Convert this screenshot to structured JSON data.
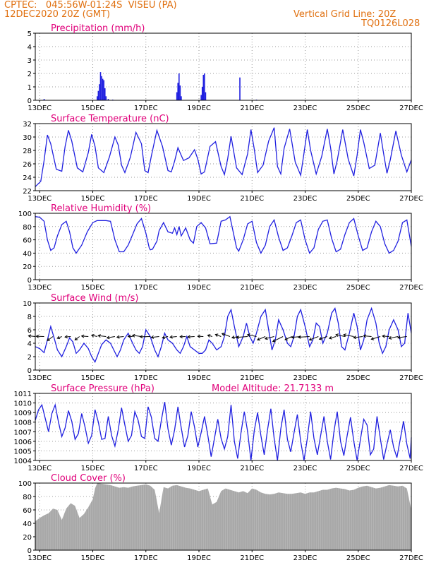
{
  "header": {
    "line1": "CPTEC:   045:56W-01:24S  VISEU (PA)",
    "line2": "12DEC2020 20Z (GMT)",
    "grid_note": "Vertical Grid Line: 20Z",
    "code": "TQ0126L028"
  },
  "colors": {
    "frame": "#000000",
    "grid": "#999999",
    "series": "#2020e0",
    "title": "#e0007a",
    "header": "#e07010",
    "cloud": "#a8a8a8"
  },
  "time_axis": {
    "tick_labels": [
      "13DEC",
      "15DEC",
      "17DEC",
      "19DEC",
      "21DEC",
      "23DEC",
      "25DEC",
      "27DEC"
    ],
    "tick_hours": [
      4,
      52,
      100,
      148,
      196,
      244,
      292,
      340
    ],
    "range_hours": [
      0,
      340
    ]
  },
  "chart_data": [
    {
      "id": "precip",
      "type": "bar",
      "title": "Precipitation (mm/h)",
      "ylim": [
        0,
        5
      ],
      "yticks": [
        0,
        1,
        2,
        3,
        4,
        5
      ],
      "events": [
        {
          "x": 8,
          "y": 0.1
        },
        {
          "x": 56,
          "y": 0.3
        },
        {
          "x": 57,
          "y": 0.7
        },
        {
          "x": 58,
          "y": 1.2
        },
        {
          "x": 59,
          "y": 2.1
        },
        {
          "x": 60,
          "y": 1.8
        },
        {
          "x": 61,
          "y": 1.6
        },
        {
          "x": 62,
          "y": 1.5
        },
        {
          "x": 63,
          "y": 0.9
        },
        {
          "x": 64,
          "y": 0.3
        },
        {
          "x": 66,
          "y": 0.1
        },
        {
          "x": 70,
          "y": 0.05
        },
        {
          "x": 128,
          "y": 0.6
        },
        {
          "x": 129,
          "y": 1.3
        },
        {
          "x": 130,
          "y": 2.0
        },
        {
          "x": 131,
          "y": 1.1
        },
        {
          "x": 132,
          "y": 0.3
        },
        {
          "x": 150,
          "y": 0.4
        },
        {
          "x": 151,
          "y": 1.0
        },
        {
          "x": 152,
          "y": 1.9
        },
        {
          "x": 153,
          "y": 2.0
        },
        {
          "x": 154,
          "y": 0.6
        },
        {
          "x": 185,
          "y": 1.7
        },
        {
          "x": 200,
          "y": 0.05
        }
      ]
    },
    {
      "id": "temp",
      "type": "line",
      "title": "Surface Temperature (nC)",
      "ylim": [
        22,
        32
      ],
      "yticks": [
        22,
        24,
        26,
        28,
        30,
        32
      ],
      "x": [
        0,
        5,
        8,
        11,
        14,
        19,
        24,
        27,
        30,
        33,
        38,
        43,
        48,
        51,
        54,
        57,
        62,
        67,
        72,
        75,
        78,
        81,
        86,
        91,
        96,
        99,
        102,
        105,
        110,
        115,
        120,
        123,
        126,
        129,
        134,
        139,
        144,
        147,
        150,
        153,
        158,
        163,
        168,
        171,
        174,
        177,
        182,
        187,
        192,
        195,
        198,
        201,
        206,
        211,
        216,
        219,
        222,
        225,
        230,
        235,
        240,
        243,
        246,
        249,
        254,
        259,
        264,
        267,
        270,
        273,
        278,
        283,
        288,
        291,
        294,
        297,
        302,
        307,
        312,
        315,
        318,
        321,
        326,
        331,
        336,
        340
      ],
      "values": [
        22.6,
        23.4,
        26.5,
        30.3,
        29.0,
        25.2,
        24.9,
        28.6,
        31.0,
        29.4,
        25.4,
        24.8,
        27.7,
        30.4,
        28.6,
        25.4,
        24.7,
        27.0,
        30.0,
        28.8,
        25.8,
        24.7,
        27.0,
        30.7,
        29.0,
        25.0,
        24.7,
        27.2,
        31.0,
        28.6,
        25.0,
        24.8,
        26.4,
        28.4,
        26.5,
        26.9,
        28.1,
        26.7,
        24.5,
        24.8,
        28.6,
        29.3,
        25.6,
        24.4,
        26.8,
        30.1,
        25.4,
        24.4,
        27.5,
        31.1,
        28.2,
        24.7,
        25.8,
        29.4,
        31.4,
        25.6,
        24.5,
        28.3,
        31.2,
        26.3,
        24.3,
        27.6,
        31.1,
        28.0,
        24.5,
        27.1,
        31.2,
        28.4,
        24.5,
        26.5,
        31.1,
        26.7,
        24.2,
        27.3,
        31.1,
        29.2,
        25.3,
        25.8,
        30.6,
        27.5,
        24.6,
        26.6,
        30.9,
        27.3,
        24.8,
        26.6
      ]
    },
    {
      "id": "rh",
      "type": "line",
      "title": "Relative Humidity (%)",
      "ylim": [
        0,
        100
      ],
      "yticks": [
        0,
        20,
        40,
        60,
        80,
        100
      ],
      "x": [
        0,
        4,
        8,
        11,
        14,
        17,
        20,
        24,
        28,
        31,
        34,
        37,
        42,
        47,
        52,
        56,
        60,
        64,
        68,
        72,
        76,
        80,
        84,
        88,
        92,
        96,
        100,
        103,
        104,
        106,
        110,
        112,
        116,
        120,
        124,
        126,
        128,
        130,
        132,
        134,
        136,
        140,
        143,
        146,
        150,
        154,
        158,
        164,
        168,
        172,
        176,
        182,
        184,
        188,
        192,
        196,
        200,
        204,
        208,
        212,
        216,
        220,
        224,
        228,
        232,
        236,
        240,
        244,
        248,
        252,
        256,
        260,
        264,
        268,
        272,
        276,
        280,
        284,
        288,
        292,
        296,
        300,
        304,
        308,
        312,
        316,
        320,
        324,
        328,
        332,
        336,
        340
      ],
      "values": [
        95,
        94,
        88,
        60,
        44,
        48,
        66,
        83,
        88,
        72,
        48,
        40,
        52,
        72,
        86,
        89,
        89,
        89,
        88,
        60,
        42,
        42,
        52,
        68,
        84,
        92,
        70,
        48,
        45,
        46,
        58,
        74,
        86,
        72,
        70,
        78,
        68,
        80,
        66,
        72,
        78,
        60,
        55,
        80,
        86,
        78,
        54,
        55,
        88,
        90,
        95,
        48,
        43,
        60,
        84,
        88,
        56,
        40,
        52,
        80,
        90,
        64,
        44,
        48,
        66,
        86,
        90,
        60,
        40,
        48,
        76,
        88,
        90,
        62,
        42,
        46,
        68,
        86,
        92,
        66,
        44,
        48,
        72,
        88,
        80,
        54,
        40,
        44,
        58,
        86,
        90,
        50
      ]
    },
    {
      "id": "wind",
      "type": "line",
      "title": "Surface Wind (m/s)",
      "ylim": [
        0,
        10
      ],
      "yticks": [
        0,
        2,
        4,
        6,
        8,
        10
      ],
      "x": [
        0,
        4,
        8,
        11,
        14,
        17,
        20,
        24,
        28,
        31,
        34,
        37,
        40,
        44,
        48,
        51,
        54,
        57,
        60,
        64,
        68,
        71,
        74,
        77,
        80,
        84,
        88,
        91,
        94,
        97,
        100,
        104,
        108,
        111,
        114,
        117,
        120,
        124,
        128,
        131,
        134,
        137,
        140,
        144,
        148,
        151,
        154,
        157,
        160,
        164,
        168,
        171,
        174,
        177,
        180,
        184,
        188,
        191,
        194,
        197,
        200,
        204,
        208,
        211,
        214,
        217,
        220,
        224,
        228,
        231,
        234,
        237,
        240,
        244,
        248,
        251,
        254,
        257,
        260,
        264,
        268,
        271,
        274,
        277,
        280,
        284,
        288,
        291,
        294,
        297,
        300,
        304,
        308,
        311,
        314,
        317,
        320,
        324,
        328,
        331,
        334,
        337,
        340
      ],
      "values": [
        3.5,
        3.2,
        2.6,
        4.5,
        6.5,
        4.8,
        3.0,
        2.0,
        3.5,
        4.8,
        4.2,
        2.5,
        3.0,
        4.0,
        3.2,
        2.0,
        1.2,
        2.5,
        3.8,
        4.5,
        4.0,
        3.0,
        2.0,
        3.0,
        4.5,
        5.5,
        4.0,
        3.0,
        2.5,
        3.5,
        6.0,
        5.0,
        3.0,
        2.0,
        3.5,
        5.5,
        4.5,
        4.0,
        3.0,
        2.5,
        3.5,
        5.0,
        3.5,
        3.0,
        2.5,
        2.5,
        3.0,
        4.5,
        4.0,
        3.0,
        3.5,
        5.0,
        8.0,
        9.0,
        6.5,
        3.5,
        5.0,
        7.0,
        5.0,
        4.0,
        5.5,
        8.0,
        9.0,
        6.0,
        3.0,
        4.5,
        7.5,
        6.0,
        4.0,
        3.5,
        5.0,
        8.0,
        9.0,
        6.5,
        3.5,
        4.5,
        7.0,
        6.5,
        4.0,
        5.5,
        8.5,
        9.2,
        7.0,
        3.5,
        3.0,
        5.5,
        8.5,
        6.5,
        3.0,
        4.5,
        7.5,
        9.2,
        7.0,
        4.0,
        2.5,
        3.5,
        6.0,
        7.5,
        6.0,
        3.5,
        4.0,
        8.5,
        5.5
      ]
    },
    {
      "id": "pressure",
      "type": "line",
      "title": "Surface Pressure (hPa)",
      "annotation": "Model Altitude: 21.7133 m",
      "ylim": [
        1004,
        1011
      ],
      "yticks": [
        1004,
        1005,
        1006,
        1007,
        1008,
        1009,
        1010,
        1011
      ],
      "x": [
        0,
        3,
        6,
        9,
        12,
        15,
        18,
        21,
        24,
        27,
        30,
        33,
        36,
        39,
        42,
        45,
        48,
        51,
        54,
        57,
        60,
        63,
        66,
        69,
        72,
        75,
        78,
        81,
        84,
        87,
        90,
        93,
        96,
        99,
        102,
        105,
        108,
        111,
        114,
        117,
        120,
        123,
        126,
        129,
        132,
        135,
        138,
        141,
        144,
        147,
        150,
        153,
        156,
        159,
        162,
        165,
        168,
        171,
        174,
        177,
        180,
        183,
        186,
        189,
        192,
        195,
        198,
        201,
        204,
        207,
        210,
        213,
        216,
        219,
        222,
        225,
        228,
        231,
        234,
        237,
        240,
        243,
        246,
        249,
        252,
        255,
        258,
        261,
        264,
        267,
        270,
        273,
        276,
        279,
        282,
        285,
        288,
        291,
        294,
        297,
        300,
        303,
        306,
        309,
        312,
        315,
        318,
        321,
        324,
        327,
        330,
        333,
        336,
        339,
        340
      ],
      "values": [
        1008.2,
        1009.3,
        1009.8,
        1008.4,
        1007.0,
        1008.9,
        1009.8,
        1008.0,
        1006.5,
        1007.4,
        1009.2,
        1008.1,
        1006.2,
        1006.8,
        1008.9,
        1007.5,
        1005.8,
        1006.6,
        1009.3,
        1008.0,
        1006.2,
        1006.3,
        1008.6,
        1006.6,
        1005.5,
        1007.2,
        1009.5,
        1007.7,
        1006.0,
        1006.6,
        1009.1,
        1008.2,
        1006.5,
        1006.3,
        1009.6,
        1008.5,
        1006.3,
        1006.0,
        1008.2,
        1010.1,
        1007.3,
        1005.6,
        1007.2,
        1009.6,
        1007.4,
        1005.4,
        1006.6,
        1009.1,
        1007.5,
        1005.4,
        1006.9,
        1008.6,
        1006.6,
        1004.4,
        1006.3,
        1008.3,
        1006.3,
        1005.2,
        1006.5,
        1009.8,
        1006.0,
        1004.2,
        1006.9,
        1009.1,
        1007.0,
        1004.0,
        1007.1,
        1009.0,
        1006.6,
        1004.6,
        1007.2,
        1009.4,
        1006.3,
        1004.0,
        1007.3,
        1009.3,
        1006.2,
        1004.9,
        1006.9,
        1008.8,
        1006.0,
        1004.0,
        1006.3,
        1009.1,
        1006.3,
        1004.6,
        1006.6,
        1008.6,
        1006.0,
        1004.1,
        1007.0,
        1009.1,
        1006.0,
        1004.5,
        1006.6,
        1008.5,
        1006.0,
        1004.0,
        1006.2,
        1008.3,
        1007.7,
        1004.6,
        1005.2,
        1008.6,
        1006.3,
        1004.1,
        1005.7,
        1007.2,
        1005.4,
        1004.3,
        1006.2,
        1008.1,
        1005.7,
        1004.2,
        1006.4
      ]
    },
    {
      "id": "cloud",
      "type": "area",
      "title": "Cloud Cover (%)",
      "ylim": [
        0,
        100
      ],
      "yticks": [
        0,
        20,
        40,
        60,
        80,
        100
      ],
      "x": [
        0,
        4,
        8,
        12,
        16,
        20,
        24,
        28,
        32,
        36,
        40,
        44,
        48,
        52,
        54,
        56,
        60,
        64,
        68,
        72,
        76,
        80,
        84,
        88,
        92,
        96,
        100,
        104,
        108,
        112,
        116,
        120,
        124,
        128,
        132,
        136,
        140,
        144,
        148,
        152,
        156,
        160,
        164,
        168,
        172,
        176,
        180,
        184,
        188,
        192,
        196,
        200,
        204,
        208,
        212,
        216,
        220,
        224,
        228,
        232,
        236,
        240,
        244,
        248,
        252,
        256,
        260,
        264,
        268,
        272,
        276,
        280,
        284,
        288,
        292,
        296,
        300,
        304,
        308,
        312,
        316,
        320,
        324,
        328,
        332,
        336,
        340
      ],
      "values": [
        43,
        48,
        52,
        55,
        62,
        60,
        45,
        62,
        70,
        66,
        48,
        54,
        64,
        76,
        92,
        100,
        99,
        98,
        97,
        95,
        93,
        94,
        93,
        95,
        96,
        97,
        98,
        96,
        90,
        55,
        94,
        92,
        96,
        97,
        95,
        93,
        92,
        90,
        88,
        90,
        92,
        68,
        72,
        88,
        92,
        90,
        88,
        86,
        88,
        85,
        92,
        90,
        86,
        84,
        83,
        84,
        86,
        85,
        84,
        84,
        85,
        86,
        84,
        86,
        86,
        88,
        90,
        90,
        92,
        93,
        92,
        91,
        89,
        90,
        93,
        95,
        96,
        94,
        92,
        93,
        95,
        97,
        96,
        95,
        96,
        92,
        60
      ]
    }
  ],
  "wind_vectors": {
    "x": [
      0,
      8,
      16,
      24,
      32,
      40,
      48,
      56,
      64,
      72,
      80,
      88,
      96,
      104,
      112,
      120,
      128,
      136,
      144,
      152,
      160,
      168,
      176,
      184,
      192,
      200,
      208,
      216,
      224,
      232,
      240,
      248,
      256,
      264,
      272,
      280,
      288,
      296,
      304,
      312,
      320,
      328,
      336
    ],
    "u": [
      -3,
      -3.5,
      -2.5,
      -2,
      -2.5,
      -2,
      -3,
      -2.5,
      -3.5,
      -3.5,
      -3,
      -2,
      -4,
      -4.5,
      -3.5,
      -2.5,
      -3,
      -2.5,
      -3,
      -2.5,
      -2,
      -2.5,
      -3.5,
      -3,
      -5,
      -4,
      -3.5,
      -4,
      -4.5,
      -3,
      -4,
      -5,
      -4,
      -3.5,
      -3,
      -4,
      -4.5,
      -4,
      -3.5,
      -4,
      -3,
      -4,
      -4
    ],
    "v": [
      0.3,
      0.1,
      -1.8,
      -0.8,
      -0.2,
      -1.5,
      0.2,
      0.6,
      0.4,
      -0.6,
      -0.3,
      0.1,
      0.5,
      -0.1,
      -0.4,
      -0.6,
      -0.3,
      -0.1,
      -0.2,
      0.1,
      0.6,
      0.9,
      1.3,
      -0.5,
      -0.4,
      0.8,
      -1.5,
      -1.0,
      -2.2,
      -1.4,
      -0.4,
      -0.3,
      -1.5,
      -1.2,
      -0.8,
      0.8,
      0.8,
      -0.5,
      0.3,
      -1.2,
      0.2,
      -0.8,
      -0.5
    ]
  }
}
